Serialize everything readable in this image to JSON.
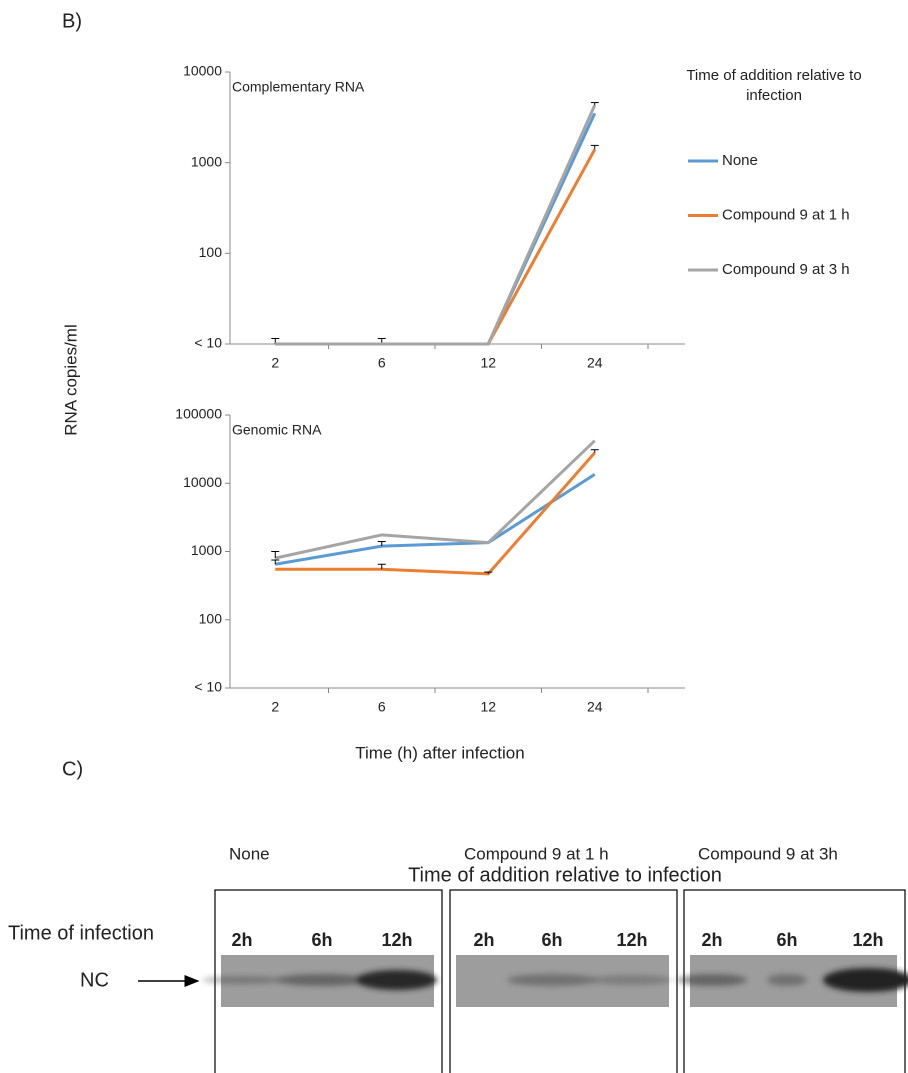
{
  "figure": {
    "panel_b": "B)",
    "panel_c": "C)"
  },
  "chart_data": [
    {
      "type": "line",
      "title": "Complementary RNA",
      "y_label": "RNA copies/ml",
      "legend_title": "Time of addition relative to infection",
      "categories": [
        "2",
        "6",
        "12",
        "24"
      ],
      "log_scale": true,
      "ylim": [
        10,
        10000
      ],
      "yticks": [
        {
          "value": 10,
          "label": "< 10"
        },
        100,
        1000,
        10000
      ],
      "series": [
        {
          "name": "None",
          "color": "#5b9bd5",
          "values": [
            10,
            10,
            10,
            3500
          ],
          "errors": [
            1.5,
            1.5,
            0,
            0
          ]
        },
        {
          "name": "Compound 9 at 1 h",
          "color": "#ed7d31",
          "values": [
            10,
            10,
            10,
            1400
          ],
          "errors": [
            0,
            0,
            0,
            150
          ]
        },
        {
          "name": "Compound 9 at 3 h",
          "color": "#a5a5a5",
          "values": [
            10,
            10,
            10,
            4300
          ],
          "errors": [
            0,
            0,
            0,
            300
          ]
        }
      ]
    },
    {
      "type": "line",
      "title": "Genomic RNA",
      "x_label": "Time (h) after infection",
      "categories": [
        "2",
        "6",
        "12",
        "24"
      ],
      "log_scale": true,
      "ylim": [
        10,
        100000
      ],
      "yticks": [
        {
          "value": 10,
          "label": "< 10"
        },
        100,
        1000,
        10000,
        100000
      ],
      "series": [
        {
          "color": "#5b9bd5",
          "values": [
            650,
            1200,
            1350,
            13500
          ],
          "errors": [
            100,
            200,
            0,
            0
          ]
        },
        {
          "color": "#ed7d31",
          "values": [
            550,
            550,
            470,
            28000
          ],
          "errors": [
            0,
            100,
            30,
            3000
          ]
        },
        {
          "color": "#a5a5a5",
          "values": [
            800,
            1750,
            1350,
            42000
          ],
          "errors": [
            200,
            0,
            0,
            0
          ]
        }
      ]
    }
  ],
  "blot": {
    "title": "Time of addition relative to infection",
    "row_label": "Time of infection",
    "band_label": "NC",
    "panels": [
      {
        "label": "None",
        "lanes": [
          "2h",
          "6h",
          "12h"
        ]
      },
      {
        "label": "Compound 9 at 1 h",
        "lanes": [
          "2h",
          "6h",
          "12h"
        ]
      },
      {
        "label": "Compound 9 at 3h",
        "lanes": [
          "2h",
          "6h",
          "12h"
        ]
      }
    ]
  }
}
